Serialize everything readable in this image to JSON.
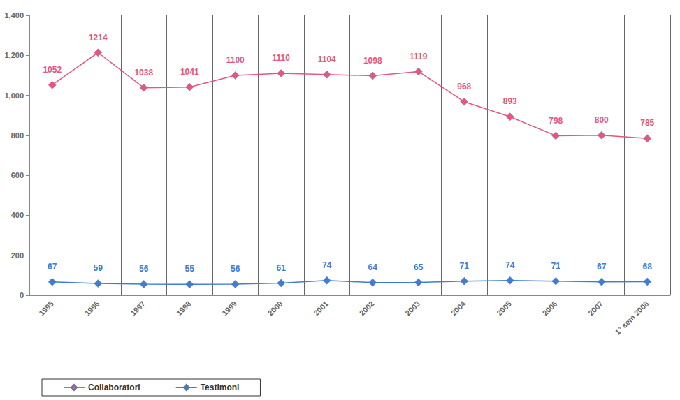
{
  "chart_data": {
    "type": "line",
    "categories": [
      "1995",
      "1996",
      "1997",
      "1998",
      "1999",
      "2000",
      "2001",
      "2002",
      "2003",
      "2004",
      "2005",
      "2006",
      "2007",
      "1° sem 2008"
    ],
    "series": [
      {
        "name": "Collaboratori",
        "color": "#e8557d",
        "values": [
          1052,
          1214,
          1038,
          1041,
          1100,
          1110,
          1104,
          1098,
          1119,
          968,
          893,
          798,
          800,
          785
        ]
      },
      {
        "name": "Testimoni",
        "color": "#3d7dd6",
        "values": [
          67,
          59,
          56,
          55,
          56,
          61,
          74,
          64,
          65,
          71,
          74,
          71,
          67,
          68
        ]
      }
    ],
    "ylim": [
      0,
      1400
    ],
    "yticks": [
      0,
      200,
      400,
      600,
      800,
      1000,
      1200,
      1400
    ],
    "grid": true,
    "legend": "bottom-left",
    "data_labels": true,
    "marker": "diamond",
    "line_style": "solid"
  }
}
